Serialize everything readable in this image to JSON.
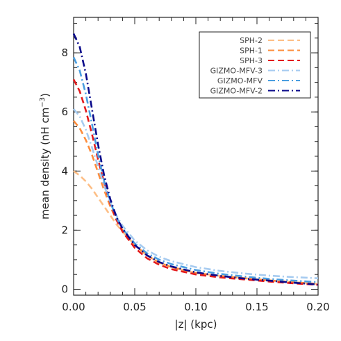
{
  "chart_data": {
    "type": "line",
    "xlabel": "|z| (kpc)",
    "ylabel": "mean density (nH cm",
    "ylabel_sup": "−3",
    "ylabel_close": ")",
    "xlim": [
      0.0,
      0.2
    ],
    "ylim": [
      -0.2,
      9.2
    ],
    "xticks": [
      0.0,
      0.05,
      0.1,
      0.15,
      0.2
    ],
    "xtick_labels": [
      "0.00",
      "0.05",
      "0.10",
      "0.15",
      "0.20"
    ],
    "yticks": [
      0,
      2,
      4,
      6,
      8
    ],
    "ytick_labels": [
      "0",
      "2",
      "4",
      "6",
      "8"
    ],
    "legend_position": "top-right",
    "grid": false,
    "series": [
      {
        "name": "SPH-2",
        "color": "#fdbe85",
        "dash": "dashed",
        "x": [
          0,
          0.005,
          0.01,
          0.015,
          0.02,
          0.025,
          0.03,
          0.035,
          0.04,
          0.05,
          0.06,
          0.07,
          0.08,
          0.1,
          0.12,
          0.14,
          0.16,
          0.18,
          0.2
        ],
        "y": [
          4.0,
          3.85,
          3.65,
          3.4,
          3.1,
          2.8,
          2.5,
          2.2,
          1.95,
          1.5,
          1.15,
          0.9,
          0.75,
          0.55,
          0.45,
          0.37,
          0.3,
          0.24,
          0.18
        ]
      },
      {
        "name": "SPH-1",
        "color": "#fd8d3c",
        "dash": "dashed",
        "x": [
          0,
          0.005,
          0.01,
          0.015,
          0.02,
          0.025,
          0.03,
          0.035,
          0.04,
          0.05,
          0.06,
          0.07,
          0.08,
          0.1,
          0.12,
          0.14,
          0.16,
          0.18,
          0.2
        ],
        "y": [
          5.7,
          5.45,
          5.05,
          4.55,
          3.95,
          3.35,
          2.8,
          2.35,
          2.0,
          1.5,
          1.15,
          0.9,
          0.75,
          0.55,
          0.45,
          0.37,
          0.3,
          0.24,
          0.18
        ]
      },
      {
        "name": "SPH-3",
        "color": "#e31a1c",
        "dash": "dashed",
        "x": [
          0,
          0.005,
          0.01,
          0.015,
          0.02,
          0.025,
          0.03,
          0.035,
          0.04,
          0.05,
          0.06,
          0.07,
          0.08,
          0.1,
          0.12,
          0.14,
          0.16,
          0.18,
          0.2
        ],
        "y": [
          7.1,
          6.7,
          6.05,
          5.25,
          4.4,
          3.6,
          2.9,
          2.35,
          1.95,
          1.4,
          1.05,
          0.83,
          0.68,
          0.5,
          0.4,
          0.33,
          0.26,
          0.2,
          0.15
        ]
      },
      {
        "name": "GIZMO-MFV-3",
        "color": "#a6cbf0",
        "dash": "dashdot",
        "x": [
          0,
          0.005,
          0.01,
          0.015,
          0.02,
          0.025,
          0.03,
          0.035,
          0.04,
          0.05,
          0.06,
          0.07,
          0.08,
          0.1,
          0.12,
          0.14,
          0.16,
          0.18,
          0.2
        ],
        "y": [
          6.1,
          5.85,
          5.4,
          4.8,
          4.15,
          3.5,
          2.95,
          2.5,
          2.15,
          1.65,
          1.32,
          1.1,
          0.95,
          0.75,
          0.62,
          0.53,
          0.46,
          0.41,
          0.37
        ]
      },
      {
        "name": "GIZMO-MFV",
        "color": "#4a9ee0",
        "dash": "dashdot",
        "x": [
          0,
          0.005,
          0.01,
          0.015,
          0.02,
          0.025,
          0.03,
          0.035,
          0.04,
          0.05,
          0.06,
          0.07,
          0.08,
          0.1,
          0.12,
          0.14,
          0.16,
          0.18,
          0.2
        ],
        "y": [
          7.85,
          7.4,
          6.6,
          5.6,
          4.55,
          3.65,
          2.95,
          2.42,
          2.05,
          1.55,
          1.22,
          1.0,
          0.85,
          0.65,
          0.52,
          0.43,
          0.35,
          0.29,
          0.24
        ]
      },
      {
        "name": "GIZMO-MFV-2",
        "color": "#08088a",
        "dash": "dashdot",
        "x": [
          0,
          0.005,
          0.01,
          0.015,
          0.02,
          0.025,
          0.03,
          0.035,
          0.04,
          0.05,
          0.06,
          0.07,
          0.08,
          0.1,
          0.12,
          0.14,
          0.16,
          0.18,
          0.2
        ],
        "y": [
          8.65,
          8.2,
          7.3,
          6.1,
          4.9,
          3.85,
          3.05,
          2.45,
          2.05,
          1.5,
          1.15,
          0.92,
          0.77,
          0.57,
          0.45,
          0.36,
          0.29,
          0.22,
          0.16
        ]
      }
    ]
  }
}
